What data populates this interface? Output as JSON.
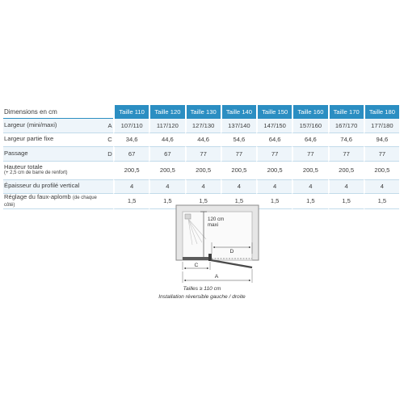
{
  "table": {
    "corner_label": "Dimensions en cm",
    "sizes": [
      "Taille 110",
      "Taille 120",
      "Taille 130",
      "Taille 140",
      "Taille 150",
      "Taille 160",
      "Taille 170",
      "Taille 180"
    ],
    "rows": [
      {
        "label": "Largeur (mini/maxi)",
        "note": "",
        "letter": "A",
        "values": [
          "107/110",
          "117/120",
          "127/130",
          "137/140",
          "147/150",
          "157/160",
          "167/170",
          "177/180"
        ]
      },
      {
        "label": "Largeur partie fixe",
        "note": "",
        "letter": "C",
        "values": [
          "34,6",
          "44,6",
          "44,6",
          "54,6",
          "64,6",
          "64,6",
          "74,6",
          "94,6"
        ]
      },
      {
        "label": "Passage",
        "note": "",
        "letter": "D",
        "values": [
          "67",
          "67",
          "77",
          "77",
          "77",
          "77",
          "77",
          "77"
        ]
      },
      {
        "label": "Hauteur totale",
        "note": "(+ 2,5 cm de barre de renfort)",
        "letter": "",
        "values": [
          "200,5",
          "200,5",
          "200,5",
          "200,5",
          "200,5",
          "200,5",
          "200,5",
          "200,5"
        ]
      },
      {
        "label": "Épaisseur du profilé vertical",
        "note": "",
        "letter": "",
        "values": [
          "4",
          "4",
          "4",
          "4",
          "4",
          "4",
          "4",
          "4"
        ]
      },
      {
        "label": "Réglage du faux-aplomb",
        "note": "(de chaque côté)",
        "letter": "",
        "values": [
          "1,5",
          "1,5",
          "1,5",
          "1,5",
          "1,5",
          "1,5",
          "1,5",
          "1,5"
        ]
      }
    ]
  },
  "diagram": {
    "height_label_line1": "120 cm",
    "height_label_line2": "maxi",
    "label_c": "C",
    "label_d": "D",
    "label_a": "A",
    "caption_line1": "Tailles ≥ 110 cm",
    "caption_line2": "Installation réversible gauche / droite"
  }
}
